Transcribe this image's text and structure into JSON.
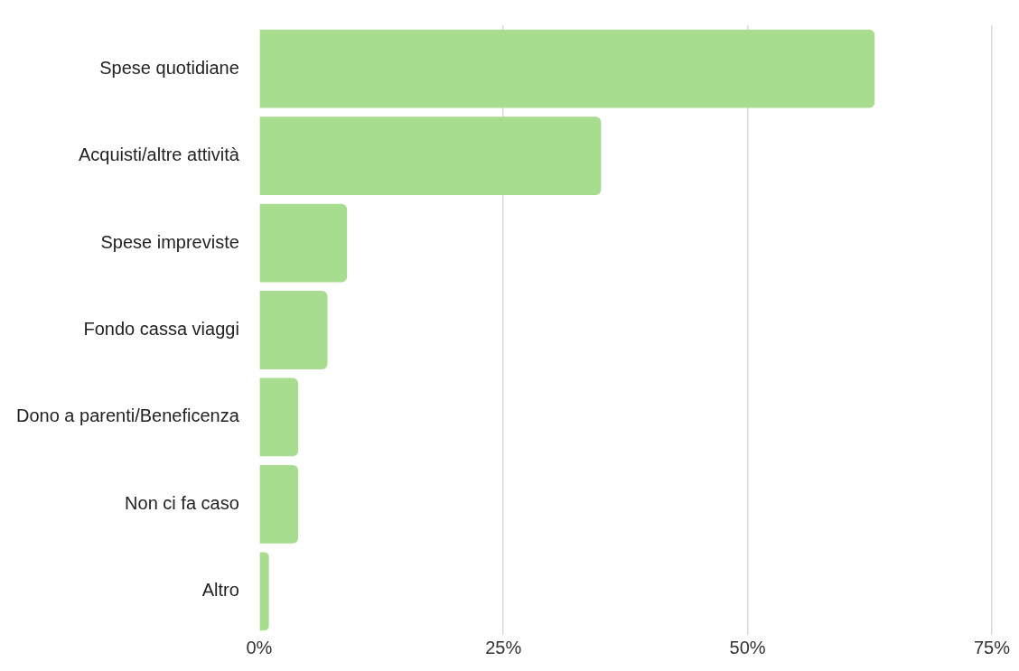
{
  "chart_data": {
    "type": "bar",
    "orientation": "horizontal",
    "categories": [
      "Spese quotidiane",
      "Acquisti/altre attività",
      "Spese impreviste",
      "Fondo cassa viaggi",
      "Dono a parenti/Beneficenza",
      "Non ci fa caso",
      "Altro"
    ],
    "values": [
      63,
      35,
      9,
      7,
      4,
      4,
      1
    ],
    "color": "#a8dc8f",
    "xlim": [
      0,
      75
    ],
    "xticks": [
      {
        "value": 0,
        "label": "0%"
      },
      {
        "value": 25,
        "label": "25%"
      },
      {
        "value": 50,
        "label": "50%"
      },
      {
        "value": 75,
        "label": "75%"
      }
    ],
    "grid": "x",
    "legend": false
  }
}
